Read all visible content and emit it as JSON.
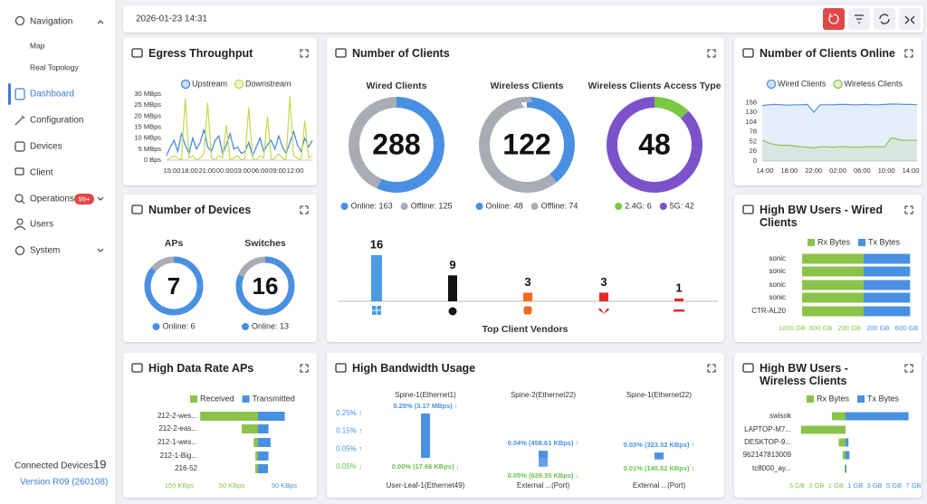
{
  "sidebar": {
    "nav": [
      "Navigation",
      "Map",
      "Real Topology",
      "Dashboard",
      "Configuration",
      "Devices",
      "Client",
      "Operations",
      "Users",
      "System"
    ],
    "badge": "99+",
    "connected_label": "Connected Devices:",
    "connected_count": 19,
    "version": "Version R09 (260108)"
  },
  "topbar": {
    "datetime": "2026-01-23 14:31"
  },
  "panels": [
    {
      "title": "Egress Throughput",
      "chart_data": {
        "type": "line",
        "ylim": [
          0,
          30
        ],
        "yticks": [
          {
            "value": 0,
            "label": "0 Bps"
          },
          {
            "value": 5,
            "label": "5 MBps"
          },
          {
            "value": 10,
            "label": "10 MBps"
          },
          {
            "value": 15,
            "label": "15 MBps"
          },
          {
            "value": 20,
            "label": "20 MBps"
          },
          {
            "value": 25,
            "label": "25 MBps"
          },
          {
            "value": 30,
            "label": "30 MBps"
          }
        ],
        "xtick_labels": [
          "15:00",
          "18:00",
          "21:00",
          "00:00",
          "03:00",
          "06:00",
          "09:00",
          "12:00"
        ],
        "series": [
          {
            "name": "Upstream",
            "color": "#3f86de",
            "values": [
              2,
              6,
              9,
              4,
              12,
              7,
              3,
              10,
              5,
              8,
              14,
              6,
              4,
              9,
              11,
              3,
              7,
              12,
              5,
              6,
              3,
              4,
              8,
              2,
              6,
              10,
              4,
              7,
              9,
              5,
              11,
              6,
              3,
              8,
              13,
              7,
              4,
              10,
              6,
              9
            ]
          },
          {
            "name": "Downstream",
            "color": "#c6d84b",
            "values": [
              0,
              1,
              2,
              1,
              0,
              28,
              1,
              2,
              0,
              1,
              3,
              26,
              1,
              0,
              2,
              1,
              16,
              0,
              1,
              2,
              0,
              1,
              24,
              1,
              0,
              2,
              1,
              20,
              0,
              1,
              3,
              1,
              0,
              29,
              2,
              1,
              0,
              18,
              1,
              2
            ]
          }
        ]
      }
    },
    {
      "title": "Number of Clients",
      "chart_data": [
        {
          "type": "donut",
          "title": "Wired Clients",
          "total": 288,
          "values": [
            163,
            125
          ],
          "value_labels": [
            "Online: 163",
            "Offline: 125"
          ],
          "colors": [
            "#4a90e2",
            "#a8acb3"
          ]
        },
        {
          "type": "donut",
          "title": "Wireless Clients",
          "total": 122,
          "values": [
            48,
            74
          ],
          "value_labels": [
            "Online: 48",
            "Offline: 74"
          ],
          "colors": [
            "#4a90e2",
            "#a8acb3"
          ]
        },
        {
          "type": "donut",
          "title": "Wireless Clients Access Type",
          "total": 48,
          "values": [
            6,
            42
          ],
          "value_labels": [
            "2.4G: 6",
            "5G: 42"
          ],
          "colors": [
            "#7ac943",
            "#7b52c9"
          ]
        },
        {
          "type": "bar",
          "title": "Top Client Vendors",
          "categories": [
            null,
            null,
            null,
            null,
            null
          ],
          "values": [
            16,
            9,
            3,
            3,
            1
          ],
          "colors": [
            "#4a9be0",
            "#111111",
            "#f26b1d",
            "#e32b2b",
            "#e32b2b"
          ],
          "ylim": [
            0,
            16
          ]
        }
      ]
    },
    {
      "title": "Number of Clients Online",
      "chart_data": {
        "type": "line",
        "area": true,
        "ylim": [
          0,
          164
        ],
        "yticks": [
          0,
          26,
          52,
          78,
          104,
          130,
          156
        ],
        "xtick_labels": [
          "14:00",
          "18:00",
          "22:00",
          "02:00",
          "06:00",
          "10:00",
          "14:00"
        ],
        "series": [
          {
            "name": "Wired Clients",
            "color": "#4a90e2",
            "values": [
              148,
              150,
              151,
              150,
              149,
              150,
              150,
              151,
              130,
              150,
              150,
              150,
              151,
              151,
              150,
              150,
              151,
              150,
              150,
              151,
              152,
              152,
              151,
              151,
              150
            ]
          },
          {
            "name": "Wireless Clients",
            "color": "#8bc34a",
            "values": [
              56,
              48,
              44,
              42,
              42,
              40,
              38,
              37,
              35,
              38,
              38,
              37,
              38,
              38,
              37,
              37,
              38,
              38,
              38,
              38,
              62,
              58,
              55,
              56,
              55
            ]
          }
        ]
      }
    },
    {
      "title": "Number of Devices",
      "chart_data": [
        {
          "type": "donut",
          "title": "APs",
          "total": 7,
          "values": [
            6,
            1
          ],
          "value_labels": [
            "Online: 6",
            null
          ],
          "colors": [
            "#4a90e2",
            "#a8acb3"
          ]
        },
        {
          "type": "donut",
          "title": "Switches",
          "total": 16,
          "values": [
            13,
            3
          ],
          "value_labels": [
            "Online: 13",
            null
          ],
          "colors": [
            "#4a90e2",
            "#a8acb3"
          ]
        }
      ]
    },
    {
      "title": "High BW Users - Wired Clients",
      "chart_data": {
        "type": "butterfly",
        "categories": [
          "sonic",
          "sonic",
          "sonic",
          "sonic",
          "CTR-AL20"
        ],
        "xlim": [
          0,
          1000
        ],
        "xticks_left": [
          {
            "value": 1000,
            "label": "1000 GB"
          },
          {
            "value": 600,
            "label": "600 GB"
          },
          {
            "value": 200,
            "label": "200 GB"
          }
        ],
        "xticks_right": [
          {
            "value": 200,
            "label": "200 GB"
          },
          {
            "value": 600,
            "label": "600 GB"
          }
        ],
        "series": [
          {
            "name": "Rx Bytes",
            "color": "#8bc34a",
            "values": [
              860,
              860,
              860,
              860,
              860
            ]
          },
          {
            "name": "Tx Bytes",
            "color": "#4a90e2",
            "values": [
              650,
              650,
              650,
              650,
              650
            ]
          }
        ]
      }
    },
    {
      "title": "High Data Rate APs",
      "chart_data": {
        "type": "butterfly",
        "categories": [
          "212-2-wes...",
          "212-2-eas...",
          "212-1-wes...",
          "212-1-Big...",
          "216-52"
        ],
        "xlim": [
          0,
          150
        ],
        "xticks_left": [
          {
            "value": 150,
            "label": "150 KBps"
          },
          {
            "value": 50,
            "label": "50 KBps"
          }
        ],
        "xticks_right": [
          {
            "value": 50,
            "label": "50 KBps"
          }
        ],
        "series": [
          {
            "name": "Received",
            "color": "#8bc34a",
            "values": [
              110,
              31,
              8,
              5,
              5
            ]
          },
          {
            "name": "Transmitted",
            "color": "#4a90e2",
            "values": [
              51,
              20,
              24,
              20,
              19
            ]
          }
        ]
      }
    },
    {
      "title": "High Bandwidth Usage",
      "chart_data": {
        "type": "diverging_bar",
        "ylim": [
          0,
          0.25
        ],
        "color": "#4a90e2",
        "yticks_up": [
          {
            "value": 0.25,
            "label": "0.25% ↑"
          },
          {
            "value": 0.15,
            "label": "0.15% ↑"
          },
          {
            "value": 0.05,
            "label": "0.05% ↑"
          }
        ],
        "yticks_down": [
          {
            "value": 0.05,
            "label": "0.05% ↓"
          }
        ],
        "top_labels": [
          "Spine-1(Ethernet1)",
          "Spine-2(Ethernet22)",
          "Spine-1(Ethernet22)"
        ],
        "bottom_labels": [
          "User-Leaf-1(Ethernet49)",
          "External ...(Port)",
          "External ...(Port)"
        ],
        "up": {
          "values": [
            0.25,
            0.04,
            0.03
          ],
          "value_labels": [
            "0.25% (3.17 MBps) ↑",
            "0.04% (458.61 KBps) ↑",
            "0.03% (323.32 KBps) ↑"
          ]
        },
        "down": {
          "values": [
            0,
            0.05,
            0.01
          ],
          "value_labels": [
            "0.00% (17.66 KBps) ↓",
            "0.05% (629.35 KBps) ↓",
            "0.01% (140.52 KBps) ↓"
          ]
        }
      }
    },
    {
      "title": "High BW Users - Wireless Clients",
      "chart_data": {
        "type": "butterfly",
        "categories": [
          "swisok",
          "LAPTOP-M7...",
          "DESKTOP-9...",
          "962147813009",
          "tc8000_ay..."
        ],
        "xlim": [
          0,
          7
        ],
        "xticks_left": [
          {
            "value": 5,
            "label": "5 GB"
          },
          {
            "value": 3,
            "label": "3 GB"
          },
          {
            "value": 1,
            "label": "1 GB"
          }
        ],
        "xticks_right": [
          {
            "value": 1,
            "label": "1 GB"
          },
          {
            "value": 3,
            "label": "3 GB"
          },
          {
            "value": 5,
            "label": "5 GB"
          },
          {
            "value": 7,
            "label": "7 GB"
          }
        ],
        "series": [
          {
            "name": "Rx Bytes",
            "color": "#8bc34a",
            "values": [
              1.4,
              4.6,
              0.7,
              0.3,
              0.1
            ]
          },
          {
            "name": "Tx Bytes",
            "color": "#4a90e2",
            "values": [
              6.5,
              0,
              0.3,
              0.4,
              0.1
            ]
          }
        ]
      }
    }
  ]
}
